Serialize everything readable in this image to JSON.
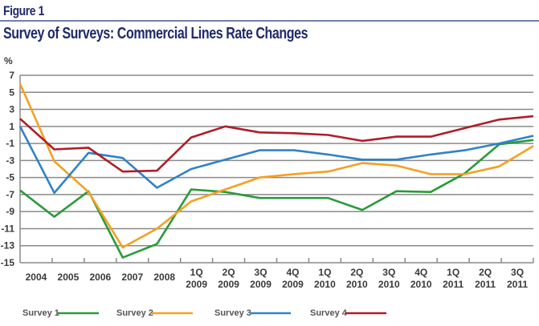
{
  "figure_label": "Figure 1",
  "chart_data": {
    "type": "line",
    "title": "Survey of Surveys: Commercial Lines Rate Changes",
    "xlabel": "",
    "ylabel": "%",
    "ylim": [
      -15,
      7
    ],
    "yticks": [
      7,
      5,
      3,
      1,
      -1,
      -3,
      -5,
      -7,
      -9,
      -11,
      -13,
      -15
    ],
    "grid": true,
    "legend_position": "bottom",
    "categories": [
      {
        "line1": "2004",
        "line2": ""
      },
      {
        "line1": "2005",
        "line2": ""
      },
      {
        "line1": "2006",
        "line2": ""
      },
      {
        "line1": "2007",
        "line2": ""
      },
      {
        "line1": "2008",
        "line2": ""
      },
      {
        "line1": "1Q",
        "line2": "2009"
      },
      {
        "line1": "2Q",
        "line2": "2009"
      },
      {
        "line1": "3Q",
        "line2": "2009"
      },
      {
        "line1": "4Q",
        "line2": "2009"
      },
      {
        "line1": "1Q",
        "line2": "2010"
      },
      {
        "line1": "2Q",
        "line2": "2010"
      },
      {
        "line1": "3Q",
        "line2": "2010"
      },
      {
        "line1": "4Q",
        "line2": "2010"
      },
      {
        "line1": "1Q",
        "line2": "2011"
      },
      {
        "line1": "2Q",
        "line2": "2011"
      },
      {
        "line1": "3Q",
        "line2": "2011"
      }
    ],
    "series": [
      {
        "name": "Survey 1",
        "color": "#2a9a3a",
        "values": [
          -6.5,
          -9.6,
          -6.6,
          -14.4,
          -12.8,
          -6.4,
          -6.7,
          -7.4,
          -7.4,
          -7.4,
          -8.8,
          -6.6,
          -6.7,
          -4.5,
          -1.1,
          -0.6
        ]
      },
      {
        "name": "Survey 2",
        "color": "#f5a020",
        "values": [
          6.0,
          -3.1,
          -6.7,
          -13.2,
          -11.0,
          -7.8,
          -6.4,
          -5.0,
          -4.6,
          -4.3,
          -3.3,
          -3.6,
          -4.6,
          -4.6,
          -3.7,
          -1.3
        ]
      },
      {
        "name": "Survey 3",
        "color": "#2e82c8",
        "values": [
          1.0,
          -6.8,
          -2.1,
          -2.7,
          -6.2,
          -4.0,
          -2.9,
          -1.8,
          -1.8,
          -2.3,
          -2.9,
          -2.9,
          -2.3,
          -1.8,
          -1.0,
          -0.1
        ]
      },
      {
        "name": "Survey 4",
        "color": "#b01c2a",
        "values": [
          1.9,
          -1.7,
          -1.5,
          -4.3,
          -4.2,
          -0.3,
          1.0,
          0.3,
          0.2,
          0.0,
          -0.7,
          -0.2,
          -0.2,
          0.8,
          1.8,
          2.2
        ]
      }
    ]
  }
}
